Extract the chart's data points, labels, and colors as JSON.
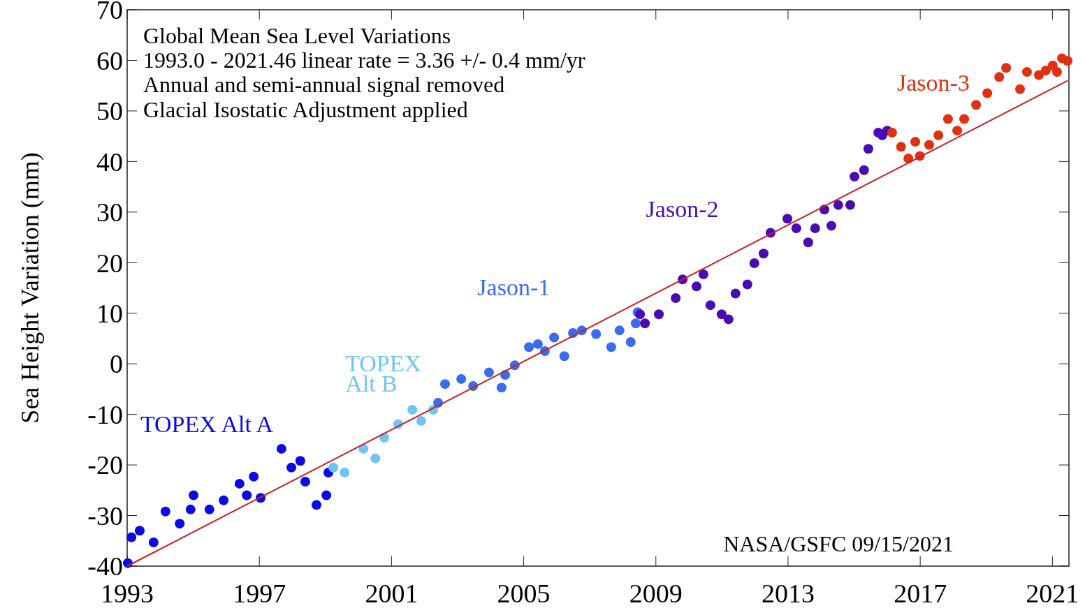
{
  "chart_data": {
    "type": "scatter",
    "title": "Global Mean Sea Level Variations",
    "ylabel": "Sea Height Variation (mm)",
    "annotations": [
      "1993.0 - 2021.46 linear rate  = 3.36 +/- 0.4 mm/yr",
      "Annual and semi-annual signal removed",
      "Glacial Isostatic Adjustment applied",
      "NASA/GSFC  09/15/2021"
    ],
    "xlim": [
      1993,
      2021.5
    ],
    "xticks": [
      1993,
      1997,
      2001,
      2005,
      2009,
      2013,
      2017,
      2021
    ],
    "ylim": [
      -40,
      70
    ],
    "yticks": [
      -40,
      -30,
      -20,
      -10,
      0,
      10,
      20,
      30,
      40,
      50,
      60,
      70
    ],
    "grid": false,
    "marker": "circle",
    "series": [
      {
        "name": "TOPEX Alt A",
        "color": "#0a0ae6",
        "x": [
          1993.02,
          1993.13,
          1993.38,
          1993.8,
          1994.16,
          1994.59,
          1994.92,
          1995.01,
          1995.49,
          1995.92,
          1996.4,
          1996.62,
          1996.83,
          1997.04,
          1997.67,
          1997.97,
          1998.24,
          1998.39,
          1998.73,
          1999.03,
          1999.09
        ],
        "values": [
          -39.4,
          -34.3,
          -33,
          -35.3,
          -29.2,
          -31.6,
          -28.8,
          -26,
          -28.8,
          -27,
          -23.7,
          -26,
          -22.3,
          -26.5,
          -16.8,
          -20.5,
          -19.2,
          -23.3,
          -27.9,
          -26,
          -21.5
        ]
      },
      {
        "name": "TOPEX Alt B",
        "color": "#70c4f4",
        "x": [
          1999.24,
          1999.58,
          2000.15,
          2000.51,
          2000.78,
          2001.2,
          2001.63,
          2001.9,
          2002.26
        ],
        "values": [
          -20.5,
          -21.5,
          -16.8,
          -18.7,
          -14.6,
          -11.9,
          -9.1,
          -11.3,
          -9.1
        ]
      },
      {
        "name": "Jason-1",
        "color": "#3a6cf0",
        "x": [
          2002.41,
          2002.62,
          2003.11,
          2003.47,
          2003.95,
          2004.33,
          2004.44,
          2004.73,
          2005.16,
          2005.43,
          2005.64,
          2005.92,
          2006.23,
          2006.49,
          2006.76,
          2007.19,
          2007.65,
          2007.9,
          2008.24,
          2008.39,
          2008.45
        ],
        "values": [
          -7.7,
          -4,
          -3,
          -4.4,
          -1.7,
          -4.7,
          -2.2,
          -0.3,
          3.3,
          3.9,
          2.5,
          5.2,
          1.5,
          6.1,
          6.6,
          5.9,
          3.3,
          6.6,
          4.3,
          8,
          10.2
        ]
      },
      {
        "name": "Jason-2",
        "color": "#4a0ab4",
        "x": [
          2008.52,
          2008.67,
          2009.09,
          2009.6,
          2009.81,
          2010.23,
          2010.44,
          2010.65,
          2010.99,
          2011.2,
          2011.41,
          2011.77,
          2011.98,
          2012.26,
          2012.47,
          2012.98,
          2013.25,
          2013.61,
          2013.82,
          2014.1,
          2014.31,
          2014.52,
          2014.88,
          2015.01,
          2015.3,
          2015.43,
          2015.73,
          2015.85,
          2016.0
        ],
        "values": [
          9.8,
          8,
          9.8,
          13,
          16.7,
          15.3,
          17.7,
          11.6,
          9.8,
          8.8,
          13.9,
          15.7,
          19.9,
          21.8,
          25.9,
          28.7,
          26.8,
          24,
          26.8,
          30.5,
          27.3,
          31.4,
          31.4,
          37,
          38.3,
          42.5,
          45.7,
          45.2,
          46.1
        ]
      },
      {
        "name": "Jason-3",
        "color": "#e03010",
        "x": [
          2016.15,
          2016.42,
          2016.64,
          2016.85,
          2016.99,
          2017.27,
          2017.55,
          2017.84,
          2018.12,
          2018.33,
          2018.69,
          2019.03,
          2019.39,
          2019.6,
          2020.02,
          2020.23,
          2020.59,
          2020.8,
          2021.01,
          2021.14,
          2021.29,
          2021.46
        ],
        "values": [
          45.7,
          42.9,
          40.6,
          43.9,
          41.1,
          43.3,
          45.2,
          48.4,
          46.1,
          48.4,
          51.2,
          53.5,
          56.7,
          58.5,
          54.3,
          57.7,
          57.1,
          58,
          59,
          57.7,
          60.4,
          59.9
        ]
      },
      {
        "type": "line",
        "color": "#c82020",
        "line_style": "solid",
        "marker": "none",
        "x": [
          1993,
          2021.46
        ],
        "values": [
          -40,
          56
        ]
      }
    ]
  }
}
